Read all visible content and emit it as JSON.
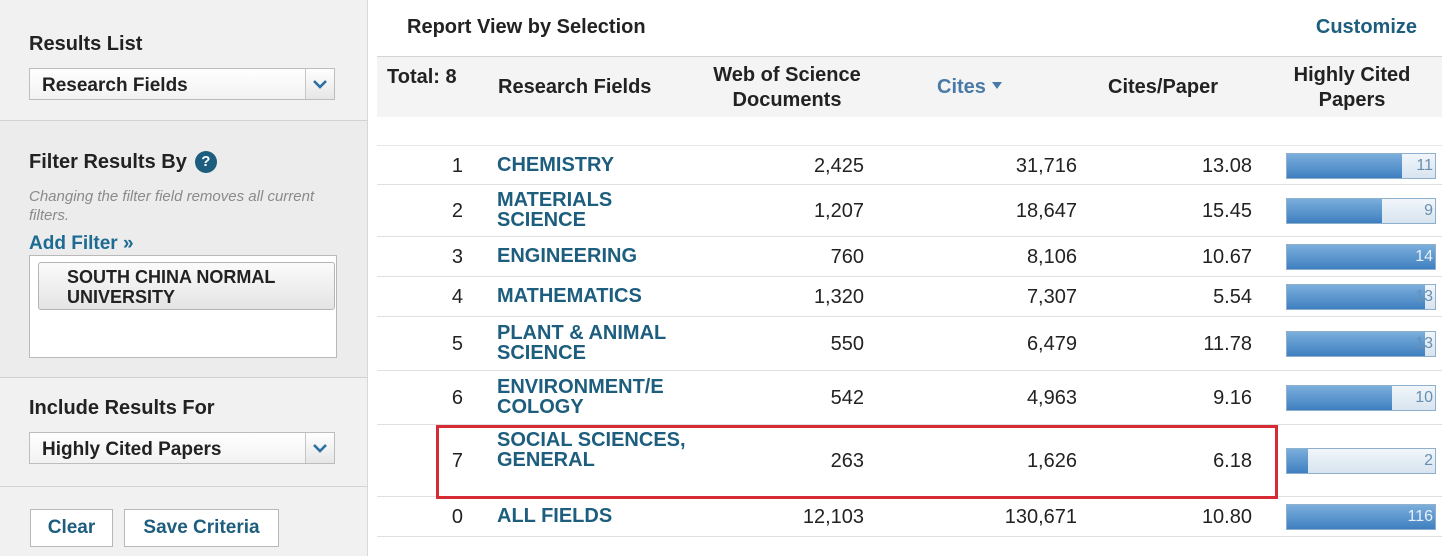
{
  "sidebar": {
    "results_list": {
      "title": "Results List",
      "selected": "Research Fields"
    },
    "filter": {
      "title": "Filter Results By",
      "help_icon": "?",
      "note": "Changing the filter field removes all current filters.",
      "add_filter": "Add Filter »",
      "active_filter": "SOUTH CHINA NORMAL UNIVERSITY"
    },
    "include": {
      "title": "Include Results For",
      "selected": "Highly Cited Papers"
    },
    "buttons": {
      "clear": "Clear",
      "save": "Save Criteria"
    }
  },
  "main": {
    "title": "Report View by Selection",
    "customize": "Customize",
    "columns": {
      "total": "Total: 8",
      "field": "Research Fields",
      "docs": "Web of Science Documents",
      "cites": "Cites",
      "cpp": "Cites/Paper",
      "hcp": "Highly Cited Papers"
    },
    "rows": [
      {
        "rank": "1",
        "field": "CHEMISTRY",
        "docs": "2,425",
        "cites": "31,716",
        "cpp": "13.08",
        "hcp": "11",
        "hcp_fraction": 0.78
      },
      {
        "rank": "2",
        "field": "MATERIALS SCIENCE",
        "docs": "1,207",
        "cites": "18,647",
        "cpp": "15.45",
        "hcp": "9",
        "hcp_fraction": 0.64
      },
      {
        "rank": "3",
        "field": "ENGINEERING",
        "docs": "760",
        "cites": "8,106",
        "cpp": "10.67",
        "hcp": "14",
        "hcp_fraction": 1.0
      },
      {
        "rank": "4",
        "field": "MATHEMATICS",
        "docs": "1,320",
        "cites": "7,307",
        "cpp": "5.54",
        "hcp": "13",
        "hcp_fraction": 0.93
      },
      {
        "rank": "5",
        "field": "PLANT & ANIMAL SCIENCE",
        "docs": "550",
        "cites": "6,479",
        "cpp": "11.78",
        "hcp": "13",
        "hcp_fraction": 0.93
      },
      {
        "rank": "6",
        "field": "ENVIRONMENT/E COLOGY",
        "docs": "542",
        "cites": "4,963",
        "cpp": "9.16",
        "hcp": "10",
        "hcp_fraction": 0.71
      },
      {
        "rank": "7",
        "field": "SOCIAL SCIENCES, GENERAL",
        "docs": "263",
        "cites": "1,626",
        "cpp": "6.18",
        "hcp": "2",
        "hcp_fraction": 0.14
      },
      {
        "rank": "0",
        "field": "ALL FIELDS",
        "docs": "12,103",
        "cites": "130,671",
        "cpp": "10.80",
        "hcp": "116",
        "hcp_fraction": 1.0
      }
    ],
    "highlight_color": "#d62a34"
  }
}
